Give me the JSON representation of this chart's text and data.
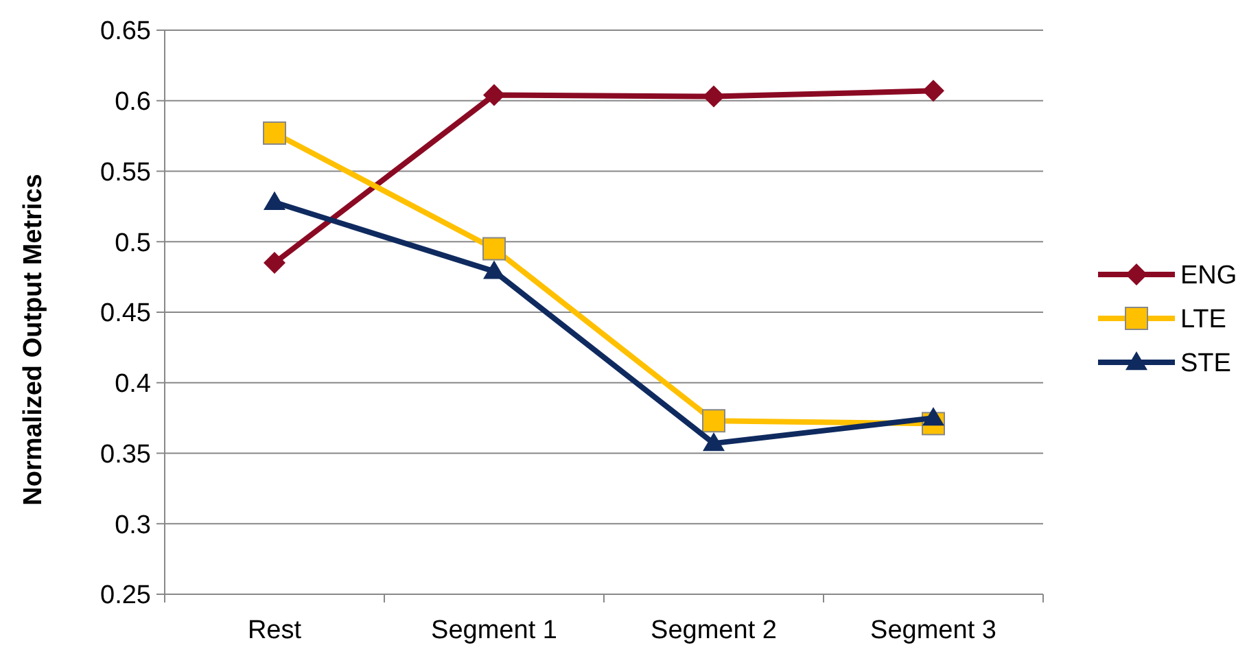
{
  "chart_data": {
    "type": "line",
    "ylabel": "Normalized Output Metrics",
    "categories": [
      "Rest",
      "Segment 1",
      "Segment 2",
      "Segment 3"
    ],
    "series": [
      {
        "name": "ENG",
        "color": "#8b0a23",
        "marker": "diamond",
        "values": [
          0.485,
          0.604,
          0.603,
          0.607
        ]
      },
      {
        "name": "LTE",
        "color": "#ffc000",
        "marker": "square",
        "values": [
          0.577,
          0.495,
          0.373,
          0.371
        ]
      },
      {
        "name": "STE",
        "color": "#0f2a5f",
        "marker": "triangle",
        "values": [
          0.528,
          0.479,
          0.357,
          0.375
        ]
      }
    ],
    "ylim": [
      0.25,
      0.65
    ],
    "yticks": [
      0.25,
      0.3,
      0.35,
      0.4,
      0.45,
      0.5,
      0.55,
      0.6,
      0.65
    ],
    "grid": "y",
    "legend": "right",
    "line_style": "solid"
  }
}
